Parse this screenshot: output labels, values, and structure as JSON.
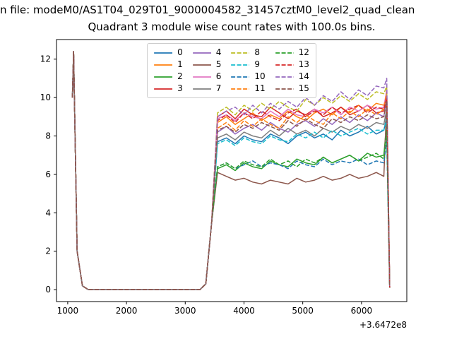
{
  "figure": {
    "suptitle": "n file: modeM0/AS1T04_029T01_9000004582_31457cztM0_level2_quad_clean",
    "offset_text": "+3.6472e8"
  },
  "chart_data": {
    "type": "line",
    "title": "Quadrant 3 module wise count rates with 100.0s bins.",
    "xlabel": "",
    "ylabel": "",
    "x_axis_offset": "+3.6472e8",
    "xlim": [
      809,
      6771
    ],
    "ylim": [
      -0.62,
      13.02
    ],
    "xticks": [
      1000,
      2000,
      3000,
      4000,
      5000,
      6000
    ],
    "yticks": [
      0,
      2,
      4,
      6,
      8,
      10,
      12
    ],
    "legend_position": "upper center",
    "legend_columns": 4,
    "grid": false,
    "x": [
      1080,
      1100,
      1160,
      1250,
      1350,
      1700,
      2100,
      2500,
      2900,
      3250,
      3350,
      3450,
      3550,
      3700,
      3850,
      4000,
      4150,
      4300,
      4450,
      4600,
      4750,
      4900,
      5050,
      5200,
      5350,
      5500,
      5650,
      5800,
      5950,
      6100,
      6250,
      6380,
      6430,
      6480
    ],
    "series": [
      {
        "name": "0",
        "color": "#1f77b4",
        "dash": "solid",
        "values": [
          10.0,
          12.4,
          2.0,
          0.2,
          0,
          0,
          0,
          0,
          0,
          0,
          0.3,
          3.5,
          7.7,
          7.9,
          7.6,
          8.0,
          7.8,
          7.7,
          8.1,
          7.9,
          7.6,
          8.0,
          8.2,
          7.9,
          8.1,
          7.8,
          8.3,
          8.0,
          8.2,
          8.5,
          8.1,
          8.3,
          9.0,
          0.1
        ]
      },
      {
        "name": "1",
        "color": "#ff7f0e",
        "dash": "solid",
        "values": [
          10.0,
          12.4,
          2.0,
          0.2,
          0,
          0,
          0,
          0,
          0,
          0,
          0.3,
          3.5,
          8.7,
          9.0,
          8.6,
          8.9,
          9.2,
          8.8,
          9.1,
          8.9,
          9.3,
          9.0,
          8.8,
          9.2,
          9.4,
          9.1,
          9.5,
          9.2,
          9.6,
          9.3,
          9.7,
          9.6,
          10.2,
          0.1
        ]
      },
      {
        "name": "2",
        "color": "#2ca02c",
        "dash": "solid",
        "values": [
          10.0,
          12.4,
          2.0,
          0.2,
          0,
          0,
          0,
          0,
          0,
          0,
          0.3,
          3.5,
          6.3,
          6.5,
          6.2,
          6.6,
          6.4,
          6.3,
          6.7,
          6.5,
          6.4,
          6.8,
          6.6,
          6.5,
          6.9,
          6.6,
          6.8,
          7.0,
          6.7,
          7.1,
          6.9,
          7.0,
          8.7,
          0.1
        ]
      },
      {
        "name": "3",
        "color": "#d62728",
        "dash": "solid",
        "values": [
          10.0,
          12.4,
          2.0,
          0.2,
          0,
          0,
          0,
          0,
          0,
          0,
          0.3,
          3.5,
          9.0,
          9.3,
          8.9,
          9.4,
          9.1,
          9.0,
          9.5,
          9.2,
          8.9,
          9.3,
          9.1,
          9.4,
          9.0,
          9.2,
          9.5,
          9.1,
          9.3,
          9.6,
          9.2,
          9.3,
          10.1,
          0.1
        ]
      },
      {
        "name": "4",
        "color": "#9467bd",
        "dash": "solid",
        "values": [
          10.0,
          12.4,
          2.0,
          0.2,
          0,
          0,
          0,
          0,
          0,
          0,
          0.3,
          3.5,
          8.2,
          8.5,
          8.1,
          8.4,
          8.6,
          8.3,
          8.7,
          8.4,
          8.2,
          8.6,
          8.8,
          8.5,
          8.9,
          8.6,
          9.0,
          8.7,
          9.1,
          8.8,
          9.2,
          9.0,
          10.0,
          0.1
        ]
      },
      {
        "name": "5",
        "color": "#8c564b",
        "dash": "solid",
        "values": [
          10.0,
          12.4,
          2.0,
          0.2,
          0,
          0,
          0,
          0,
          0,
          0,
          0.3,
          3.5,
          6.1,
          5.9,
          5.7,
          5.8,
          5.6,
          5.5,
          5.7,
          5.6,
          5.5,
          5.8,
          5.6,
          5.7,
          5.9,
          5.7,
          5.8,
          6.0,
          5.8,
          5.9,
          6.1,
          5.9,
          9.8,
          0.1
        ]
      },
      {
        "name": "6",
        "color": "#e377c2",
        "dash": "solid",
        "values": [
          10.0,
          12.4,
          2.0,
          0.2,
          0,
          0,
          0,
          0,
          0,
          0,
          0.3,
          3.5,
          8.9,
          9.1,
          8.8,
          9.2,
          9.0,
          8.9,
          9.3,
          9.0,
          9.4,
          9.1,
          9.0,
          9.4,
          9.2,
          9.5,
          9.1,
          9.5,
          9.3,
          9.6,
          9.4,
          9.5,
          10.4,
          0.1
        ]
      },
      {
        "name": "7",
        "color": "#7f7f7f",
        "dash": "solid",
        "values": [
          10.0,
          12.4,
          2.0,
          0.2,
          0,
          0,
          0,
          0,
          0,
          0,
          0.3,
          3.5,
          7.9,
          8.1,
          7.8,
          8.2,
          8.0,
          7.9,
          8.3,
          8.0,
          8.4,
          8.1,
          8.3,
          8.0,
          8.4,
          8.2,
          8.5,
          8.3,
          8.6,
          8.4,
          8.7,
          8.6,
          9.4,
          0.1
        ]
      },
      {
        "name": "8",
        "color": "#bcbd22",
        "dash": "dashed",
        "values": [
          10.0,
          12.4,
          2.0,
          0.2,
          0,
          0,
          0,
          0,
          0,
          0,
          0.3,
          3.5,
          9.2,
          9.5,
          9.1,
          9.6,
          9.3,
          9.7,
          9.4,
          9.8,
          9.5,
          9.3,
          9.9,
          9.6,
          10.0,
          9.7,
          10.1,
          9.8,
          10.2,
          9.9,
          10.3,
          10.2,
          10.6,
          0.1
        ]
      },
      {
        "name": "9",
        "color": "#17becf",
        "dash": "dashed",
        "values": [
          10.0,
          12.4,
          2.0,
          0.2,
          0,
          0,
          0,
          0,
          0,
          0,
          0.3,
          3.5,
          7.6,
          7.8,
          7.5,
          7.9,
          7.7,
          7.6,
          8.0,
          7.8,
          7.7,
          8.1,
          7.9,
          8.2,
          7.9,
          8.3,
          8.0,
          8.2,
          8.4,
          8.1,
          8.3,
          8.3,
          8.9,
          0.1
        ]
      },
      {
        "name": "10",
        "color": "#1f77b4",
        "dash": "dashed",
        "values": [
          10.0,
          12.4,
          2.0,
          0.2,
          0,
          0,
          0,
          0,
          0,
          0,
          0.3,
          3.5,
          6.4,
          6.6,
          6.3,
          6.5,
          6.7,
          6.4,
          6.6,
          6.5,
          6.3,
          6.7,
          6.5,
          6.4,
          6.8,
          6.5,
          6.7,
          6.6,
          6.8,
          6.5,
          6.7,
          6.6,
          7.8,
          0.1
        ]
      },
      {
        "name": "11",
        "color": "#ff7f0e",
        "dash": "dashed",
        "values": [
          10.0,
          12.4,
          2.0,
          0.2,
          0,
          0,
          0,
          0,
          0,
          0,
          0.3,
          3.5,
          8.4,
          8.7,
          8.3,
          8.8,
          8.5,
          8.9,
          8.6,
          8.4,
          9.0,
          8.7,
          9.1,
          8.8,
          8.6,
          9.2,
          8.9,
          9.3,
          9.0,
          9.4,
          9.1,
          9.4,
          10.3,
          0.1
        ]
      },
      {
        "name": "12",
        "color": "#2ca02c",
        "dash": "dashed",
        "values": [
          10.0,
          12.4,
          2.0,
          0.2,
          0,
          0,
          0,
          0,
          0,
          0,
          0.3,
          3.5,
          6.4,
          6.6,
          6.3,
          6.7,
          6.5,
          6.4,
          6.8,
          6.5,
          6.7,
          6.4,
          6.8,
          6.6,
          6.9,
          6.6,
          6.8,
          7.0,
          6.7,
          6.9,
          7.1,
          6.8,
          8.3,
          0.1
        ]
      },
      {
        "name": "13",
        "color": "#d62728",
        "dash": "dashed",
        "values": [
          10.0,
          12.4,
          2.0,
          0.2,
          0,
          0,
          0,
          0,
          0,
          0,
          0.3,
          3.5,
          8.8,
          9.1,
          8.7,
          9.2,
          8.9,
          9.3,
          9.0,
          8.8,
          9.2,
          9.4,
          9.0,
          9.3,
          9.1,
          9.5,
          9.2,
          9.4,
          9.6,
          9.2,
          9.5,
          9.4,
          10.0,
          0.1
        ]
      },
      {
        "name": "14",
        "color": "#9467bd",
        "dash": "dashed",
        "values": [
          10.0,
          12.4,
          2.0,
          0.2,
          0,
          0,
          0,
          0,
          0,
          0,
          0.3,
          3.5,
          9.0,
          9.3,
          9.5,
          9.1,
          9.6,
          9.2,
          9.7,
          9.4,
          9.8,
          9.5,
          10.0,
          9.6,
          10.1,
          9.8,
          10.3,
          9.9,
          10.4,
          10.1,
          10.6,
          10.5,
          11.0,
          0.1
        ]
      },
      {
        "name": "15",
        "color": "#8c564b",
        "dash": "dashed",
        "values": [
          10.0,
          12.4,
          2.0,
          0.2,
          0,
          0,
          0,
          0,
          0,
          0,
          0.3,
          3.5,
          8.3,
          8.5,
          8.2,
          8.6,
          8.4,
          8.7,
          8.5,
          8.3,
          8.8,
          8.5,
          8.9,
          8.6,
          8.4,
          8.9,
          8.7,
          9.0,
          8.8,
          9.1,
          8.9,
          9.0,
          9.8,
          0.1
        ]
      }
    ]
  }
}
